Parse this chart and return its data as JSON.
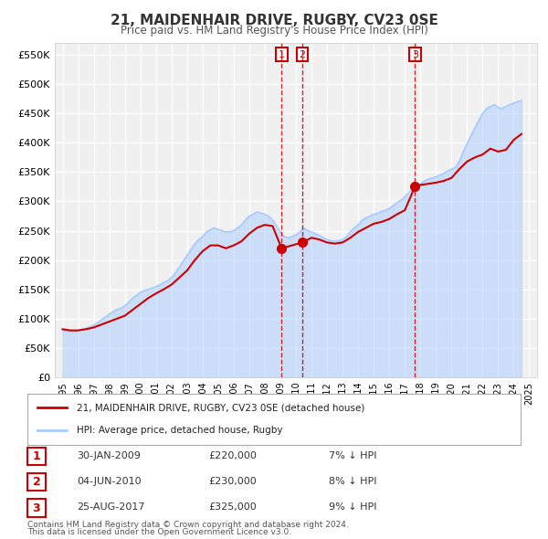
{
  "title": "21, MAIDENHAIR DRIVE, RUGBY, CV23 0SE",
  "subtitle": "Price paid vs. HM Land Registry's House Price Index (HPI)",
  "ylabel": "",
  "xlim": [
    1994.5,
    2025.5
  ],
  "ylim": [
    0,
    570000
  ],
  "yticks": [
    0,
    50000,
    100000,
    150000,
    200000,
    250000,
    300000,
    350000,
    400000,
    450000,
    500000,
    550000
  ],
  "ytick_labels": [
    "£0",
    "£50K",
    "£100K",
    "£150K",
    "£200K",
    "£250K",
    "£300K",
    "£350K",
    "£400K",
    "£450K",
    "£500K",
    "£550K"
  ],
  "xticks": [
    1995,
    1996,
    1997,
    1998,
    1999,
    2000,
    2001,
    2002,
    2003,
    2004,
    2005,
    2006,
    2007,
    2008,
    2009,
    2010,
    2011,
    2012,
    2013,
    2014,
    2015,
    2016,
    2017,
    2018,
    2019,
    2020,
    2021,
    2022,
    2023,
    2024,
    2025
  ],
  "background_color": "#ffffff",
  "plot_bg_color": "#f0f0f0",
  "grid_color": "#ffffff",
  "hpi_color": "#aaccff",
  "price_color": "#cc0000",
  "sale_dot_color": "#cc0000",
  "transaction_vline_color": "#cc0000",
  "legend_box_color": "#cc0000",
  "transactions": [
    {
      "num": 1,
      "date": "30-JAN-2009",
      "year": 2009.08,
      "price": 220000,
      "pct": "7%",
      "dir": "↓"
    },
    {
      "num": 2,
      "date": "04-JUN-2010",
      "year": 2010.42,
      "price": 230000,
      "pct": "8%",
      "dir": "↓"
    },
    {
      "num": 3,
      "date": "25-AUG-2017",
      "year": 2017.65,
      "price": 325000,
      "pct": "9%",
      "dir": "↓"
    }
  ],
  "legend_line1": "21, MAIDENHAIR DRIVE, RUGBY, CV23 0SE (detached house)",
  "legend_line2": "HPI: Average price, detached house, Rugby",
  "footer1": "Contains HM Land Registry data © Crown copyright and database right 2024.",
  "footer2": "This data is licensed under the Open Government Licence v3.0.",
  "hpi_data_x": [
    1995.0,
    1995.25,
    1995.5,
    1995.75,
    1996.0,
    1996.25,
    1996.5,
    1996.75,
    1997.0,
    1997.25,
    1997.5,
    1997.75,
    1998.0,
    1998.25,
    1998.5,
    1998.75,
    1999.0,
    1999.25,
    1999.5,
    1999.75,
    2000.0,
    2000.25,
    2000.5,
    2000.75,
    2001.0,
    2001.25,
    2001.5,
    2001.75,
    2002.0,
    2002.25,
    2002.5,
    2002.75,
    2003.0,
    2003.25,
    2003.5,
    2003.75,
    2004.0,
    2004.25,
    2004.5,
    2004.75,
    2005.0,
    2005.25,
    2005.5,
    2005.75,
    2006.0,
    2006.25,
    2006.5,
    2006.75,
    2007.0,
    2007.25,
    2007.5,
    2007.75,
    2008.0,
    2008.25,
    2008.5,
    2008.75,
    2009.0,
    2009.25,
    2009.5,
    2009.75,
    2010.0,
    2010.25,
    2010.5,
    2010.75,
    2011.0,
    2011.25,
    2011.5,
    2011.75,
    2012.0,
    2012.25,
    2012.5,
    2012.75,
    2013.0,
    2013.25,
    2013.5,
    2013.75,
    2014.0,
    2014.25,
    2014.5,
    2014.75,
    2015.0,
    2015.25,
    2015.5,
    2015.75,
    2016.0,
    2016.25,
    2016.5,
    2016.75,
    2017.0,
    2017.25,
    2017.5,
    2017.75,
    2018.0,
    2018.25,
    2018.5,
    2018.75,
    2019.0,
    2019.25,
    2019.5,
    2019.75,
    2020.0,
    2020.25,
    2020.5,
    2020.75,
    2021.0,
    2021.25,
    2021.5,
    2021.75,
    2022.0,
    2022.25,
    2022.5,
    2022.75,
    2023.0,
    2023.25,
    2023.5,
    2023.75,
    2024.0,
    2024.25,
    2024.5
  ],
  "hpi_data_y": [
    80000,
    79000,
    78000,
    78500,
    80000,
    82000,
    84000,
    86000,
    89000,
    93000,
    98000,
    103000,
    108000,
    112000,
    116000,
    118000,
    122000,
    128000,
    135000,
    140000,
    145000,
    148000,
    150000,
    152000,
    155000,
    158000,
    162000,
    165000,
    170000,
    178000,
    188000,
    198000,
    208000,
    218000,
    228000,
    235000,
    240000,
    248000,
    252000,
    255000,
    252000,
    250000,
    248000,
    248000,
    250000,
    255000,
    260000,
    268000,
    275000,
    278000,
    282000,
    280000,
    278000,
    275000,
    268000,
    258000,
    248000,
    240000,
    238000,
    240000,
    243000,
    248000,
    255000,
    250000,
    248000,
    245000,
    242000,
    238000,
    235000,
    233000,
    232000,
    233000,
    235000,
    240000,
    248000,
    255000,
    260000,
    268000,
    272000,
    275000,
    278000,
    280000,
    283000,
    285000,
    288000,
    293000,
    298000,
    302000,
    308000,
    315000,
    320000,
    325000,
    330000,
    335000,
    338000,
    340000,
    342000,
    345000,
    348000,
    352000,
    355000,
    358000,
    368000,
    385000,
    398000,
    412000,
    425000,
    438000,
    450000,
    458000,
    462000,
    465000,
    460000,
    458000,
    462000,
    465000,
    468000,
    470000,
    472000
  ],
  "price_data_x": [
    1995.0,
    1995.5,
    1996.0,
    1996.5,
    1997.0,
    1997.5,
    1998.0,
    1998.5,
    1999.0,
    1999.5,
    2000.0,
    2000.5,
    2001.0,
    2001.5,
    2002.0,
    2002.5,
    2003.0,
    2003.5,
    2004.0,
    2004.5,
    2005.0,
    2005.5,
    2006.0,
    2006.5,
    2007.0,
    2007.5,
    2008.0,
    2008.5,
    2009.08,
    2010.42,
    2011.0,
    2011.5,
    2012.0,
    2012.5,
    2013.0,
    2013.5,
    2014.0,
    2014.5,
    2015.0,
    2015.5,
    2016.0,
    2016.5,
    2017.0,
    2017.65,
    2018.0,
    2018.5,
    2019.0,
    2019.5,
    2020.0,
    2020.5,
    2021.0,
    2021.5,
    2022.0,
    2022.5,
    2023.0,
    2023.5,
    2024.0,
    2024.5
  ],
  "price_data_y": [
    82000,
    80000,
    80000,
    82000,
    85000,
    90000,
    95000,
    100000,
    105000,
    115000,
    125000,
    135000,
    143000,
    150000,
    158000,
    170000,
    182000,
    200000,
    215000,
    225000,
    225000,
    220000,
    225000,
    232000,
    245000,
    255000,
    260000,
    258000,
    220000,
    230000,
    238000,
    235000,
    230000,
    228000,
    230000,
    238000,
    248000,
    255000,
    262000,
    265000,
    270000,
    278000,
    285000,
    325000,
    328000,
    330000,
    332000,
    335000,
    340000,
    355000,
    368000,
    375000,
    380000,
    390000,
    385000,
    388000,
    405000,
    415000
  ]
}
